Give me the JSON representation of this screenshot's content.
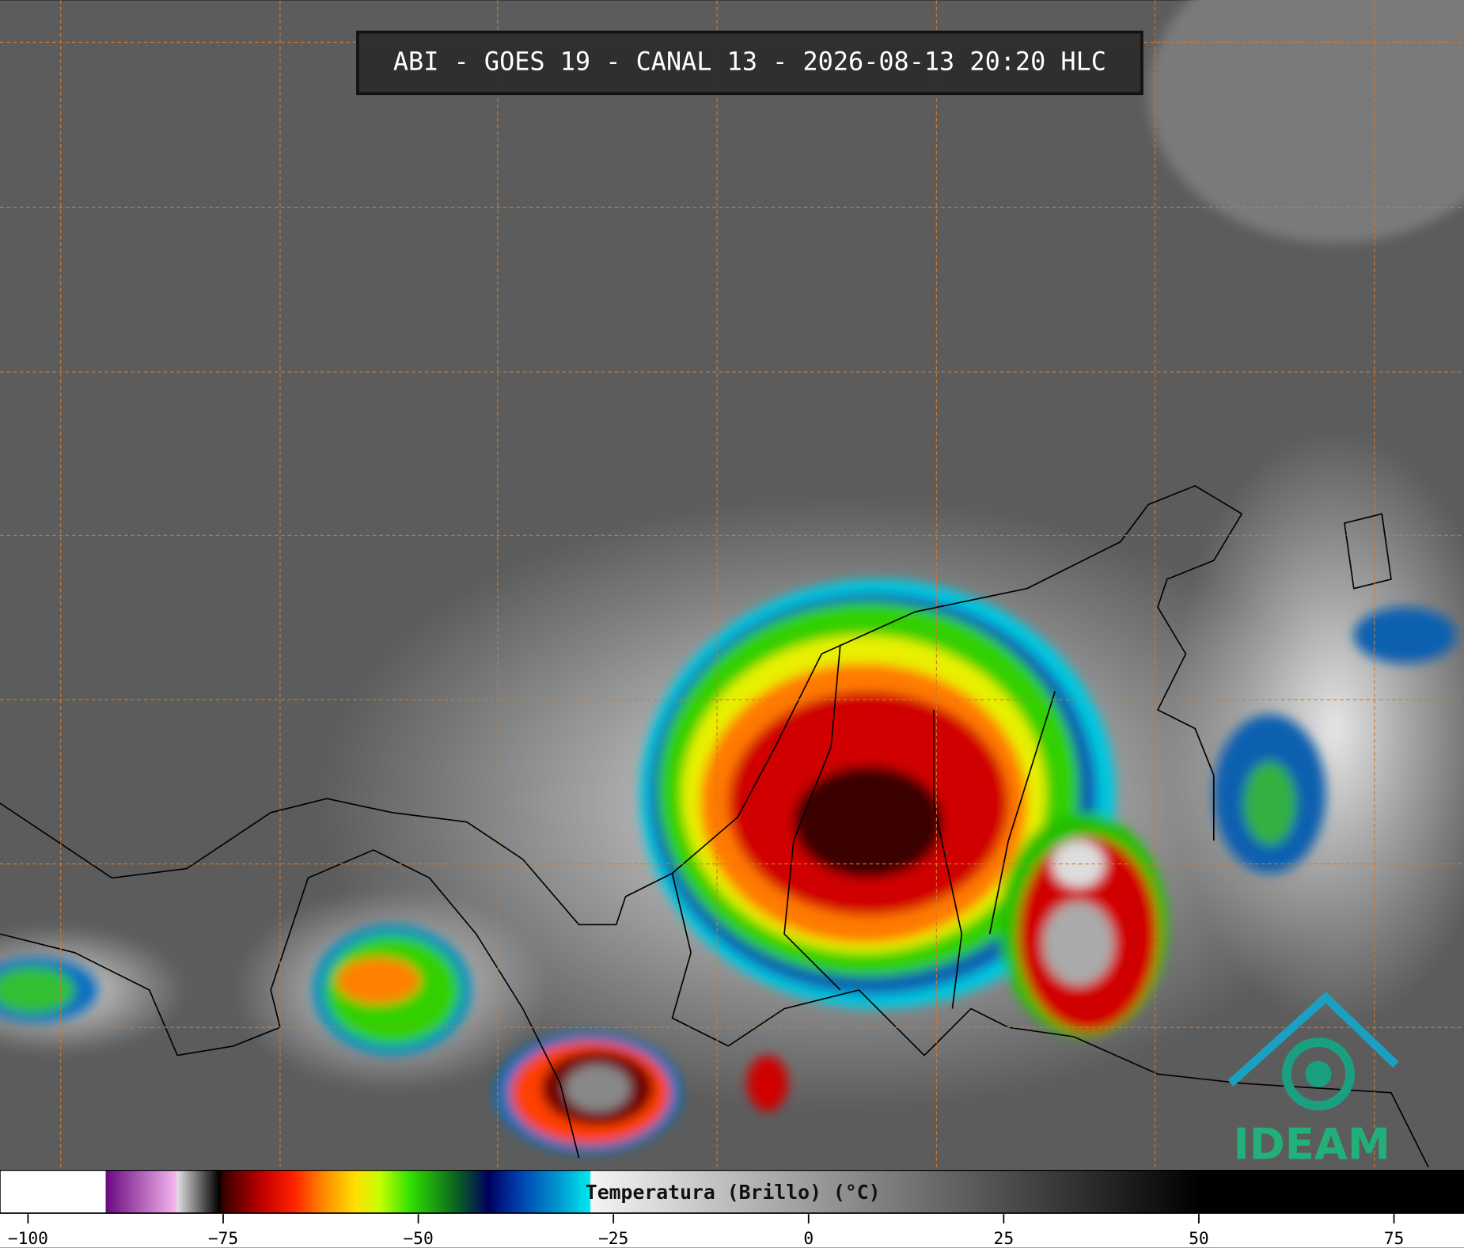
{
  "title": "ABI - GOES 19 - CANAL 13 - 2026-08-13 20:20 HLC",
  "logo": "IDEAM",
  "colorbar": {
    "label": "Temperatura (Brillo) (°C)",
    "xlim": [
      -103.6,
      84.2
    ],
    "xticks": [
      {
        "value": -100,
        "label": "−100"
      },
      {
        "value": -75,
        "label": "−75"
      },
      {
        "value": -50,
        "label": "−50"
      },
      {
        "value": -25,
        "label": "−25"
      },
      0,
      25,
      50,
      75
    ],
    "colormap": [
      {
        "value": -103.6,
        "color": "#ffffff"
      },
      {
        "value": -90.1,
        "color": "#ffffff"
      },
      {
        "value": -90,
        "color": "#6a0a80"
      },
      {
        "value": -81,
        "color": "#f5b6ee"
      },
      {
        "value": -80.9,
        "color": "#e0e0e0"
      },
      {
        "value": -75.5,
        "color": "#000000"
      },
      {
        "value": -75,
        "color": "#3a0000"
      },
      {
        "value": -70,
        "color": "#c00000"
      },
      {
        "value": -66,
        "color": "#ff2000"
      },
      {
        "value": -62,
        "color": "#ff8c00"
      },
      {
        "value": -58,
        "color": "#ffe000"
      },
      {
        "value": -55,
        "color": "#c8ff00"
      },
      {
        "value": -51,
        "color": "#30e000"
      },
      {
        "value": -45,
        "color": "#0a6020"
      },
      {
        "value": -41,
        "color": "#000060"
      },
      {
        "value": -37,
        "color": "#0040b0"
      },
      {
        "value": -32,
        "color": "#0098d0"
      },
      {
        "value": -28,
        "color": "#00e8f0"
      },
      {
        "value": -27.9,
        "color": "#f4f4f4"
      },
      {
        "value": 50,
        "color": "#000000"
      },
      {
        "value": 84.2,
        "color": "#000000"
      }
    ]
  }
}
